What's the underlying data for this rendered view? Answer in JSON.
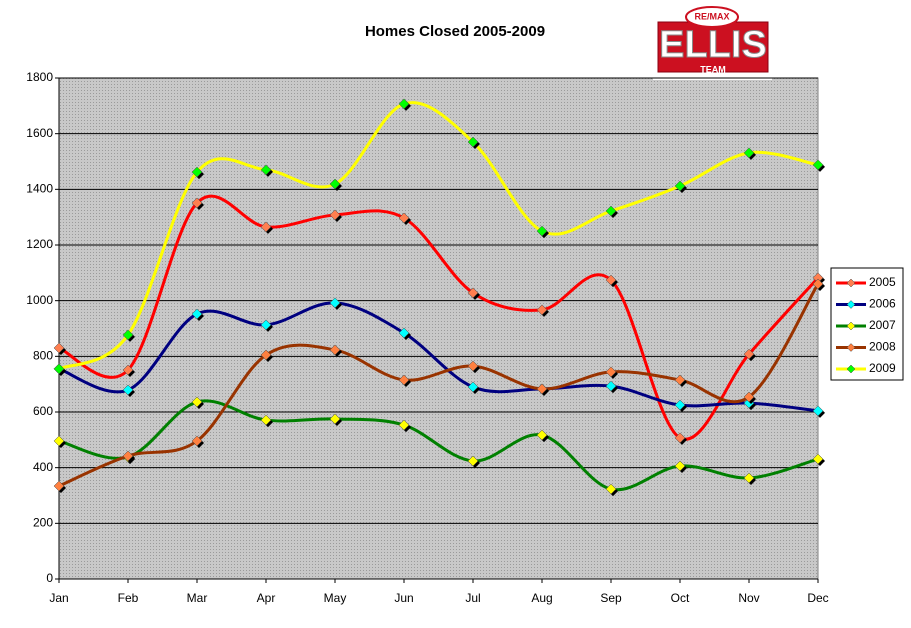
{
  "chart_data": {
    "type": "line",
    "title": "Homes Closed 2005-2009",
    "categories": [
      "Jan",
      "Feb",
      "Mar",
      "Apr",
      "May",
      "Jun",
      "Jul",
      "Aug",
      "Sep",
      "Oct",
      "Nov",
      "Dec"
    ],
    "ylim": [
      0,
      1800
    ],
    "yticks": [
      0,
      200,
      400,
      600,
      800,
      1000,
      1200,
      1400,
      1600,
      1800
    ],
    "grid": true,
    "smooth": true,
    "legend": "right",
    "series": [
      {
        "name": "2005",
        "color": "#ff0000",
        "marker_color": "#ff7f50",
        "values": [
          830,
          751,
          1351,
          1265,
          1308,
          1297,
          1028,
          967,
          1074,
          507,
          808,
          1082
        ]
      },
      {
        "name": "2006",
        "color": "#000080",
        "marker_color": "#00ffff",
        "values": [
          755,
          679,
          952,
          913,
          992,
          884,
          690,
          683,
          693,
          625,
          632,
          604
        ]
      },
      {
        "name": "2007",
        "color": "#008000",
        "marker_color": "#ffff00",
        "values": [
          496,
          438,
          636,
          571,
          575,
          553,
          424,
          517,
          323,
          406,
          363,
          431
        ]
      },
      {
        "name": "2008",
        "color": "#993300",
        "marker_color": "#ff8040",
        "values": [
          334,
          442,
          496,
          805,
          823,
          715,
          765,
          683,
          744,
          715,
          654,
          1060
        ]
      },
      {
        "name": "2009",
        "color": "#ffff00",
        "marker_color": "#00ff00",
        "values": [
          755,
          877,
          1462,
          1470,
          1419,
          1707,
          1570,
          1250,
          1322,
          1412,
          1531,
          1488
        ]
      }
    ]
  },
  "logo": {
    "brand": "RE/MAX",
    "name": "ELLIS",
    "team": "TEAM"
  }
}
